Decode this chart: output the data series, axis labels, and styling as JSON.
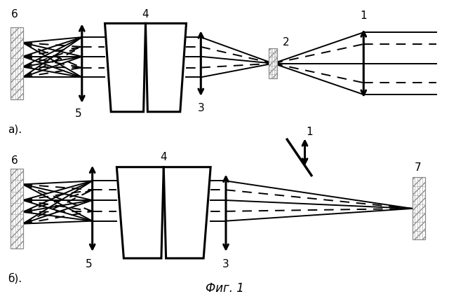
{
  "bg_color": "#ffffff",
  "fig_width": 6.4,
  "fig_height": 4.31,
  "title": "Фиг. 1",
  "label_a": "а).",
  "label_b": "б)."
}
